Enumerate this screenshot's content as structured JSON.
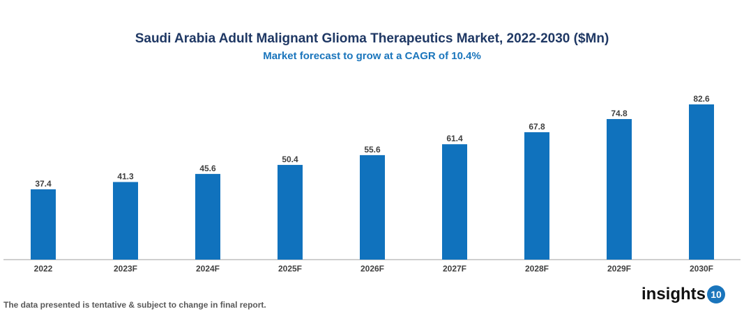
{
  "chart_data": {
    "type": "bar",
    "title": "Saudi Arabia Adult Malignant Glioma Therapeutics Market, 2022-2030 ($Mn)",
    "subtitle": "Market forecast to grow at a CAGR of 10.4%",
    "categories": [
      "2022",
      "2023F",
      "2024F",
      "2025F",
      "2026F",
      "2027F",
      "2028F",
      "2029F",
      "2030F"
    ],
    "values": [
      37.4,
      41.3,
      45.6,
      50.4,
      55.6,
      61.4,
      67.8,
      74.8,
      82.6
    ],
    "xlabel": "",
    "ylabel": "",
    "ylim": [
      0,
      85
    ],
    "grid": false,
    "bar_color": "#1072bd"
  },
  "footer": "The data presented is tentative & subject to change in final report.",
  "logo": {
    "text": "insights",
    "badge": "10"
  }
}
